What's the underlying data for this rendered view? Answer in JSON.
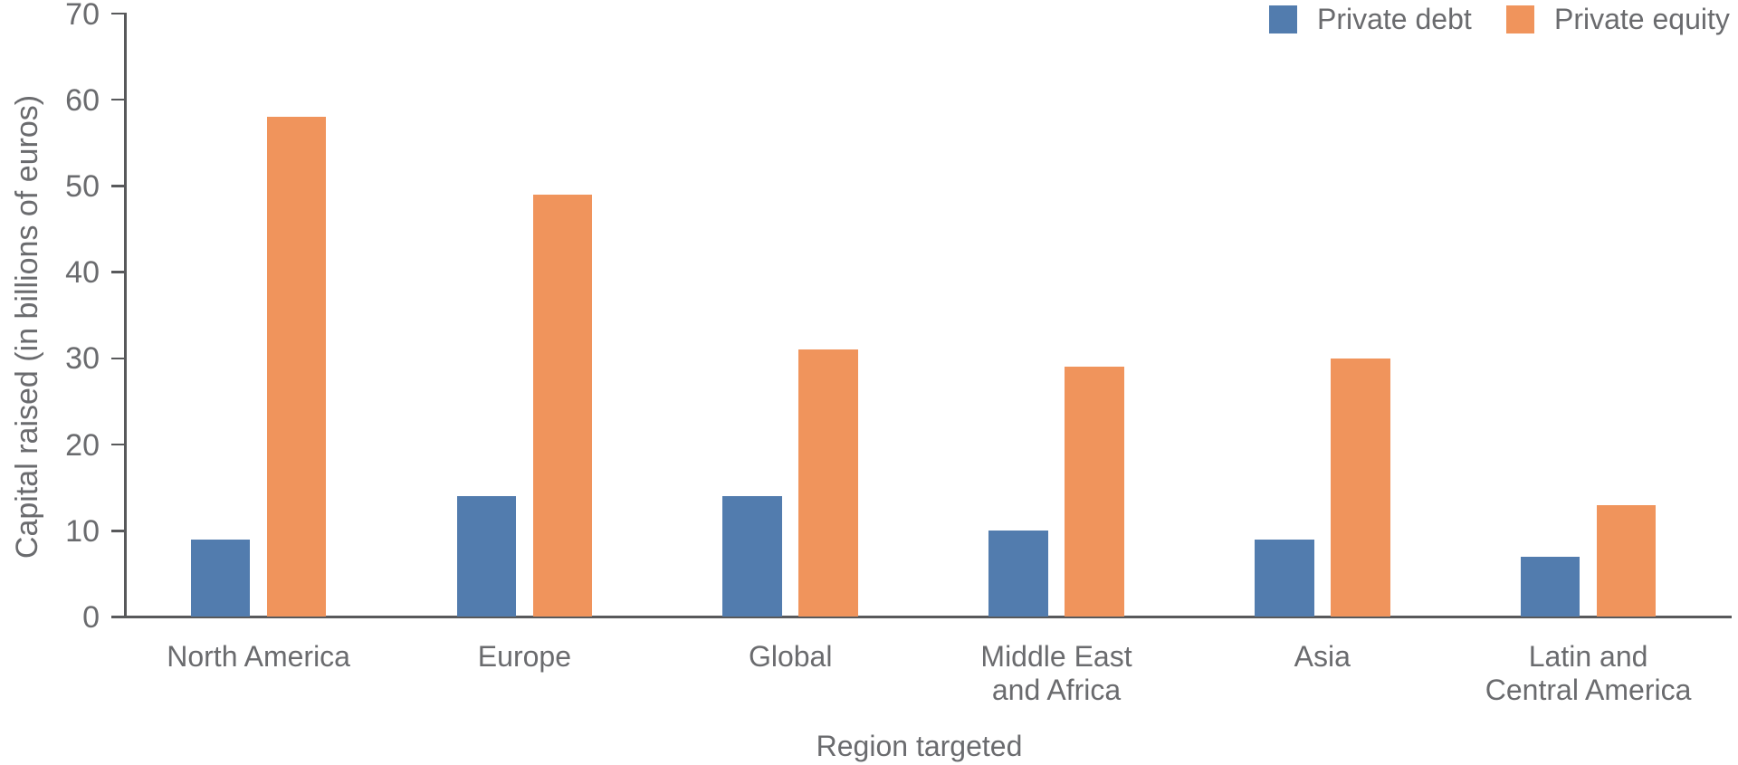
{
  "chart_data": {
    "type": "bar",
    "categories": [
      "North America",
      "Europe",
      "Global",
      "Middle East\nand Africa",
      "Asia",
      "Latin and\nCentral America"
    ],
    "series": [
      {
        "name": "Private debt",
        "color": "#527CAE",
        "values": [
          9,
          14,
          14,
          10,
          9,
          7
        ]
      },
      {
        "name": "Private equity",
        "color": "#F0945C",
        "values": [
          58,
          49,
          31,
          29,
          30,
          13
        ]
      }
    ],
    "title": "",
    "xlabel": "Region targeted",
    "ylabel": "Capital raised (in billions of euros)",
    "ylim": [
      0,
      70
    ],
    "yticks": [
      0,
      10,
      20,
      30,
      40,
      50,
      60,
      70
    ],
    "grid": false,
    "legend_position": "top-right",
    "colors": {
      "axis": "#58595B",
      "text": "#6A6B6E",
      "background": "#FFFFFF"
    }
  }
}
